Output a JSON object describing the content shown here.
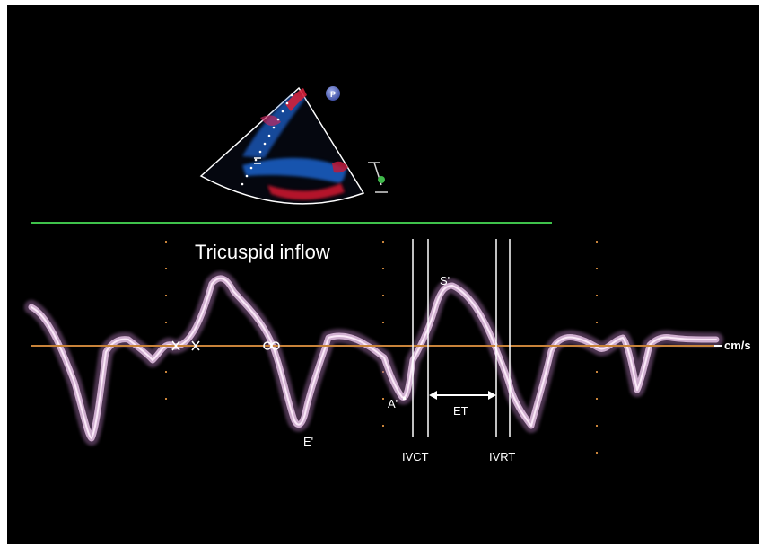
{
  "title": "Tricuspid inflow",
  "unit": "cm/s",
  "waves": {
    "s": "S'",
    "e": "E'",
    "a": "A'"
  },
  "intervals": {
    "ivct": "IVCT",
    "et": "ET",
    "ivrt": "IVRT"
  },
  "probe_marker": "P",
  "colors": {
    "background": "#000000",
    "baseline": "#c8833a",
    "ecg_line": "#3fc24b",
    "doppler_signal": "#e8c6e6",
    "interval_lines": "#ffffff"
  }
}
